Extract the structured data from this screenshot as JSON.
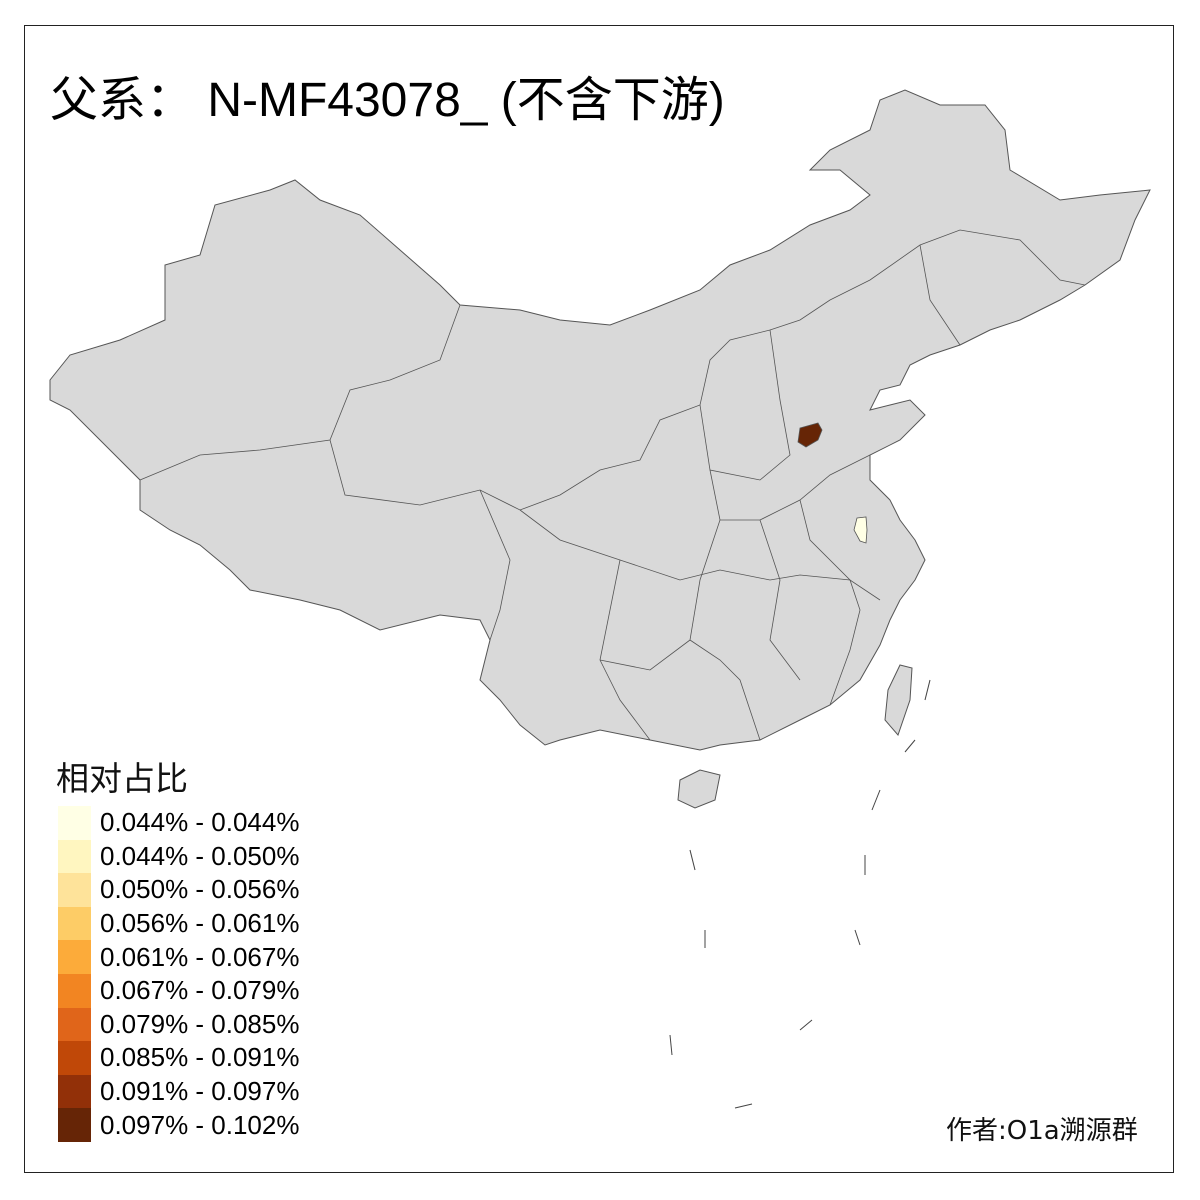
{
  "title": "父系： N-MF43078_ (不含下游)",
  "legend": {
    "title": "相对占比",
    "items": [
      {
        "label": "0.044% - 0.044%",
        "color": "#FFFFE5"
      },
      {
        "label": "0.044% - 0.050%",
        "color": "#FFF6C0"
      },
      {
        "label": "0.050% - 0.056%",
        "color": "#FEE39A"
      },
      {
        "label": "0.056% - 0.061%",
        "color": "#FDCC66"
      },
      {
        "label": "0.061% - 0.067%",
        "color": "#FCAB3A"
      },
      {
        "label": "0.067% - 0.079%",
        "color": "#F28522"
      },
      {
        "label": "0.079% - 0.085%",
        "color": "#E0651A"
      },
      {
        "label": "0.085% - 0.091%",
        "color": "#C04808"
      },
      {
        "label": "0.091% - 0.097%",
        "color": "#923008"
      },
      {
        "label": "0.097% - 0.102%",
        "color": "#662506"
      }
    ]
  },
  "map": {
    "base_color": "#D9D9D9",
    "border_color": "#555555",
    "highlighted_regions": [
      {
        "class_index": 9,
        "color": "#662506"
      },
      {
        "class_index": 0,
        "color": "#FFFFE5"
      }
    ]
  },
  "credit": "作者:O1a溯源群"
}
